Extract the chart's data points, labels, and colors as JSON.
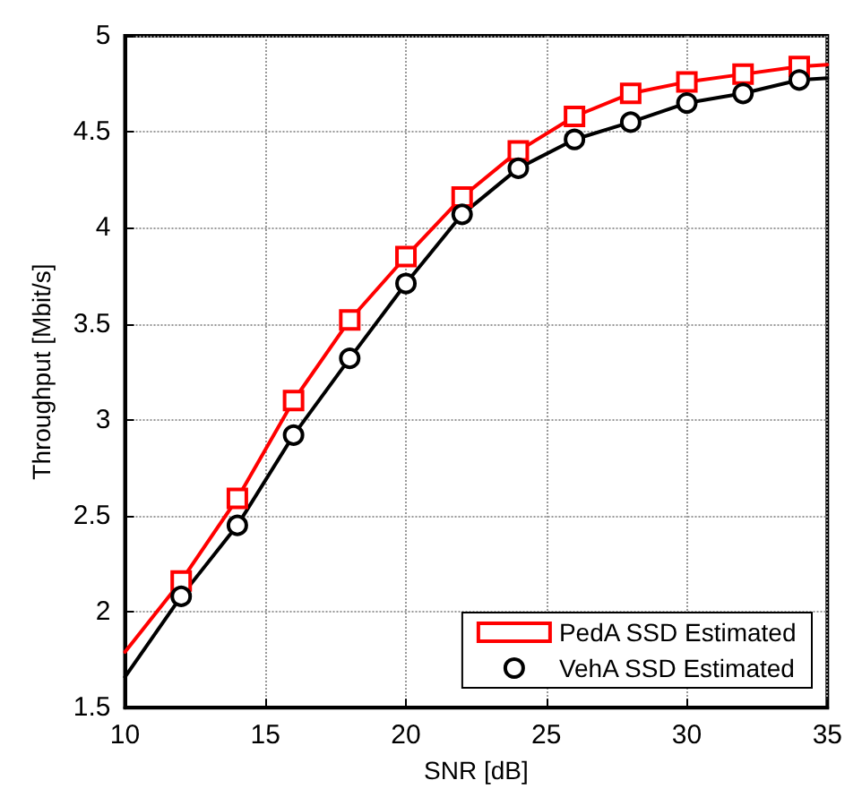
{
  "chart_data": {
    "type": "line",
    "xlabel": "SNR [dB]",
    "ylabel": "Throughput [Mbit/s]",
    "x": [
      10,
      12,
      14,
      16,
      18,
      20,
      22,
      24,
      26,
      28,
      30,
      32,
      34,
      35
    ],
    "series": [
      {
        "name": "PedA SSD Estimated",
        "color": "#ff0000",
        "marker": "square",
        "values": [
          1.79,
          2.16,
          2.59,
          3.1,
          3.52,
          3.85,
          4.16,
          4.4,
          4.58,
          4.7,
          4.76,
          4.8,
          4.84,
          4.85
        ]
      },
      {
        "name": "VehA SSD Estimated",
        "color": "#000000",
        "marker": "circle",
        "values": [
          1.66,
          2.08,
          2.45,
          2.92,
          3.32,
          3.71,
          4.07,
          4.31,
          4.46,
          4.55,
          4.65,
          4.7,
          4.77,
          4.78
        ]
      }
    ],
    "xlim": [
      10,
      35
    ],
    "xticks": [
      10,
      15,
      20,
      25,
      30,
      35
    ],
    "ylim": [
      1.5,
      5
    ],
    "yticks": [
      1.5,
      2,
      2.5,
      3,
      3.5,
      4,
      4.5,
      5
    ],
    "grid": true,
    "legend": "bottom right",
    "line_style": "solid"
  }
}
